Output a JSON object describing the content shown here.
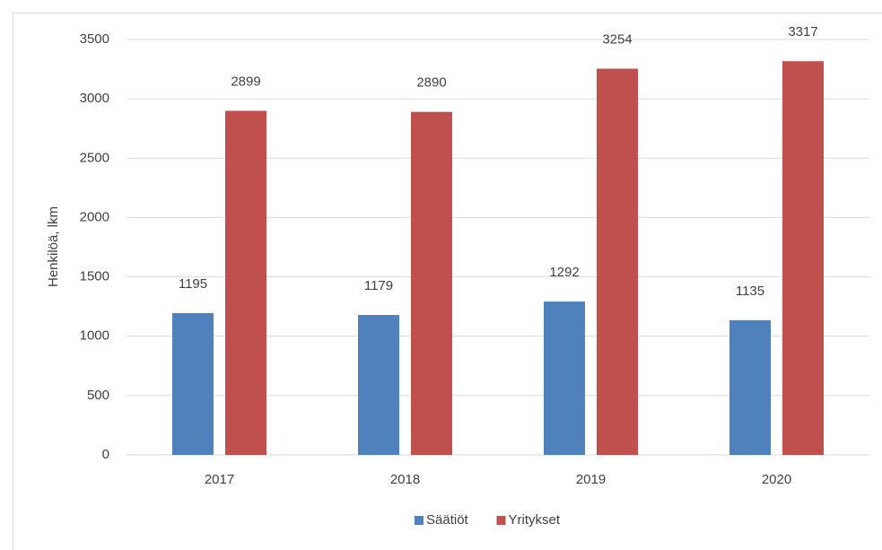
{
  "chart_data": {
    "type": "bar",
    "y_label": "Henkilöä, lkm",
    "categories": [
      "2017",
      "2018",
      "2019",
      "2020"
    ],
    "series": [
      {
        "name": "Säätiöt",
        "color": "#4f81bd",
        "values": [
          1195,
          1179,
          1292,
          1135
        ]
      },
      {
        "name": "Yritykset",
        "color": "#c0504d",
        "values": [
          2899,
          2890,
          3254,
          3317
        ]
      }
    ],
    "ylim": [
      0,
      3500
    ],
    "yticks": [
      0,
      500,
      1000,
      1500,
      2000,
      2500,
      3000,
      3500
    ],
    "grid": true,
    "legend": "bottom",
    "data_labels": true
  }
}
